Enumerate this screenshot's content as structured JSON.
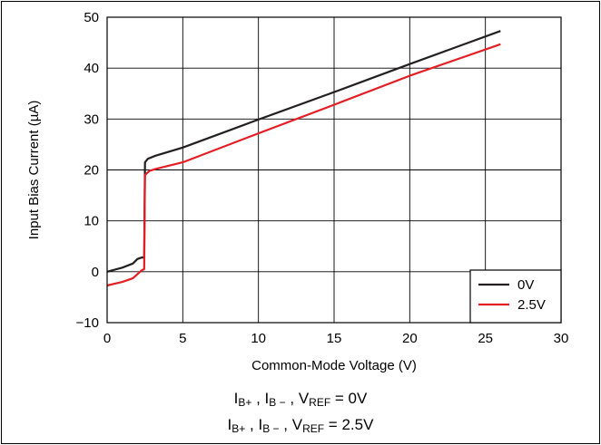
{
  "chart_data": {
    "type": "line",
    "xlabel": "Common-Mode Voltage (V)",
    "ylabel": "Input Bias Current (µA)",
    "xlim": [
      0,
      30
    ],
    "ylim": [
      -10,
      50
    ],
    "x_ticks": [
      0,
      5,
      10,
      15,
      20,
      25,
      30
    ],
    "x_tick_labels": [
      "0",
      "5",
      "10",
      "15",
      "20",
      "25",
      "30"
    ],
    "y_ticks": [
      -10,
      0,
      10,
      20,
      30,
      40,
      50
    ],
    "y_tick_labels": [
      "−10",
      "0",
      "10",
      "20",
      "30",
      "40",
      "50"
    ],
    "grid": true,
    "legend_position": "bottom-right",
    "series": [
      {
        "name": "0V",
        "color": "#231f20",
        "points": [
          [
            0,
            0
          ],
          [
            1,
            0.8
          ],
          [
            1.7,
            1.6
          ],
          [
            2.0,
            2.5
          ],
          [
            2.3,
            2.8
          ],
          [
            2.45,
            2.8
          ],
          [
            2.5,
            21.5
          ],
          [
            2.7,
            22.2
          ],
          [
            3.2,
            22.8
          ],
          [
            5,
            24.4
          ],
          [
            10,
            29.9
          ],
          [
            15,
            35.3
          ],
          [
            20,
            40.8
          ],
          [
            26,
            47.3
          ]
        ]
      },
      {
        "name": "2.5V",
        "color": "#e31e24",
        "points": [
          [
            0,
            -2.7
          ],
          [
            1,
            -2.0
          ],
          [
            1.7,
            -1.3
          ],
          [
            2.0,
            -0.5
          ],
          [
            2.3,
            0.3
          ],
          [
            2.45,
            0.5
          ],
          [
            2.5,
            19.0
          ],
          [
            2.8,
            19.8
          ],
          [
            3.2,
            20.2
          ],
          [
            5,
            21.5
          ],
          [
            10,
            27.2
          ],
          [
            15,
            32.8
          ],
          [
            20,
            38.5
          ],
          [
            26,
            44.7
          ]
        ]
      }
    ]
  },
  "captions": [
    {
      "parts": [
        "I",
        "B+",
        " , I",
        "B −",
        " , V",
        "REF",
        " = 0V"
      ]
    },
    {
      "parts": [
        "I",
        "B+",
        " , I",
        "B −",
        " , V",
        "REF",
        " = 2.5V"
      ]
    }
  ]
}
